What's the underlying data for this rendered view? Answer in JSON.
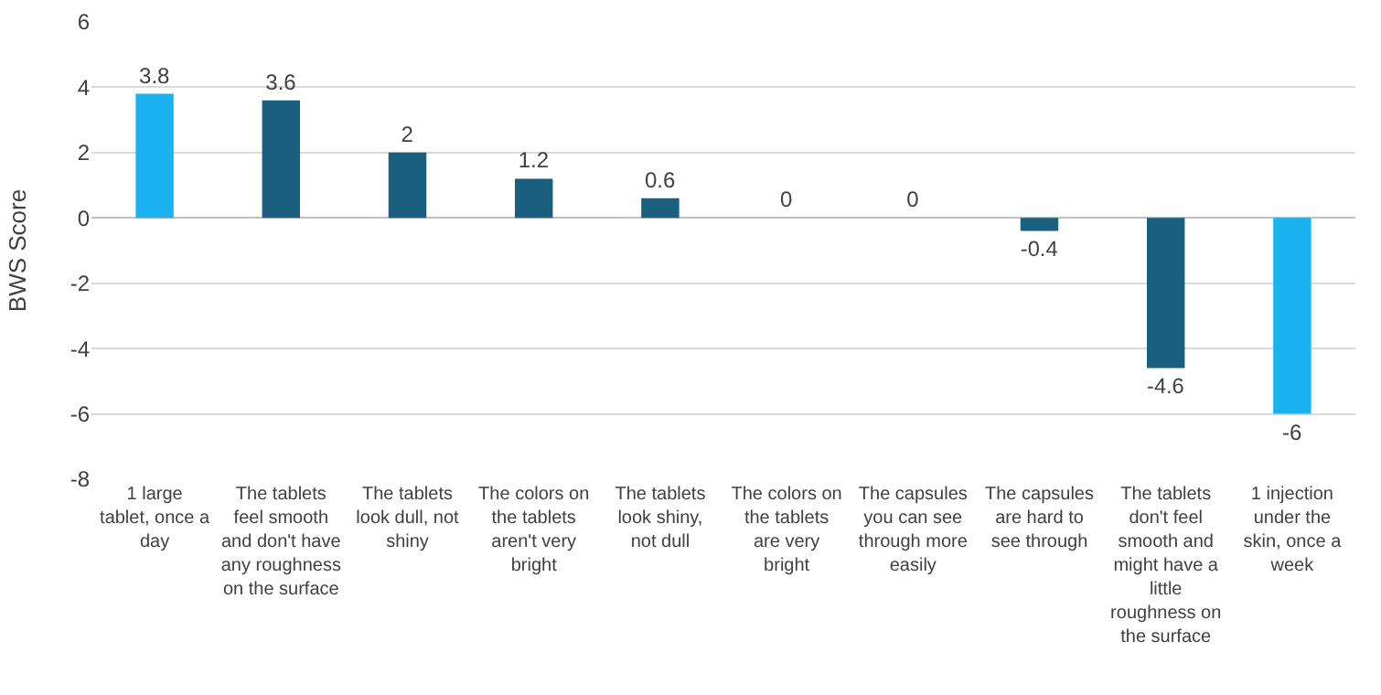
{
  "chart_data": {
    "type": "bar",
    "ylabel": "BWS Score",
    "categories": [
      "1 large tablet, once a day",
      "The tablets feel smooth and don't have any roughness on the surface",
      "The tablets look dull, not shiny",
      "The colors on the tablets aren't very bright",
      "The tablets look shiny, not dull",
      "The colors on the tablets are very bright",
      "The capsules you can see through more easily",
      "The capsules are hard to see through",
      "The tablets don't feel smooth and might have a little roughness on the surface",
      "1 injection under the skin, once a week"
    ],
    "values": [
      3.8,
      3.6,
      2,
      1.2,
      0.6,
      0,
      0,
      -0.4,
      -4.6,
      -6
    ],
    "colors": [
      "#1ab2f0",
      "#1b5f80",
      "#1b5f80",
      "#1b5f80",
      "#1b5f80",
      "#1b5f80",
      "#1b5f80",
      "#1b5f80",
      "#1b5f80",
      "#1ab2f0"
    ],
    "ylim": [
      -8,
      6
    ],
    "yticks": [
      -8,
      -6,
      -4,
      -2,
      0,
      2,
      4,
      6
    ],
    "grid": "y",
    "data_labels": true
  }
}
